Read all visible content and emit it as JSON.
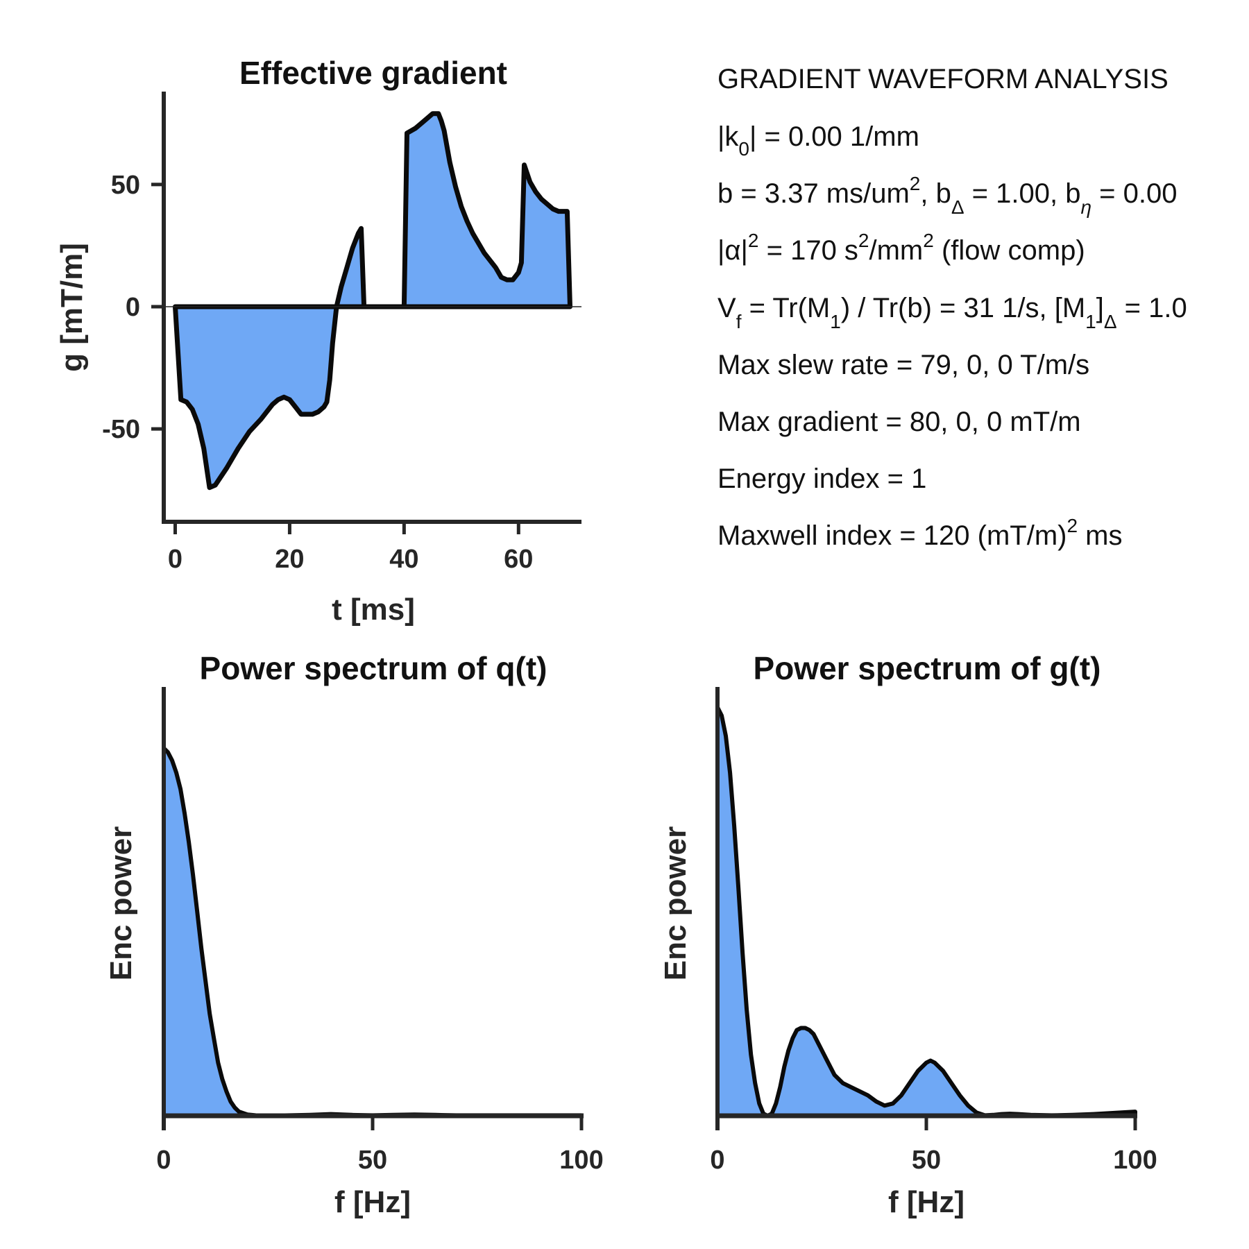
{
  "colors": {
    "fill": "#6fa8f5",
    "line": "#0a0a0a",
    "axis": "#262626"
  },
  "chart_data": [
    {
      "type": "area",
      "title": "Effective gradient",
      "xlabel": "t [ms]",
      "ylabel": "g [mT/m]",
      "xlim": [
        -2,
        71
      ],
      "ylim": [
        -88,
        88
      ],
      "xticks": [
        0,
        20,
        40,
        60
      ],
      "yticks": [
        -50,
        0,
        50
      ],
      "zero_line": true,
      "points": [
        [
          0,
          0
        ],
        [
          1,
          -38
        ],
        [
          2,
          -39
        ],
        [
          3,
          -42
        ],
        [
          4,
          -48
        ],
        [
          5,
          -58
        ],
        [
          6,
          -74
        ],
        [
          7,
          -73
        ],
        [
          9,
          -66
        ],
        [
          11,
          -58
        ],
        [
          13,
          -51
        ],
        [
          15,
          -46
        ],
        [
          17,
          -40
        ],
        [
          18,
          -38
        ],
        [
          19,
          -37
        ],
        [
          20,
          -38
        ],
        [
          21,
          -41
        ],
        [
          22,
          -44
        ],
        [
          24,
          -44
        ],
        [
          25,
          -43
        ],
        [
          26,
          -41
        ],
        [
          26.5,
          -39
        ],
        [
          27,
          -30
        ],
        [
          27.5,
          -15
        ],
        [
          28.2,
          0
        ],
        [
          29,
          8
        ],
        [
          30,
          16
        ],
        [
          31,
          24
        ],
        [
          32,
          30
        ],
        [
          32.5,
          32
        ],
        [
          33,
          0
        ],
        [
          33,
          0
        ],
        [
          39.5,
          0
        ],
        [
          40,
          0
        ],
        [
          40.5,
          71
        ],
        [
          42,
          73
        ],
        [
          43,
          75
        ],
        [
          44,
          77
        ],
        [
          45,
          79
        ],
        [
          46,
          79
        ],
        [
          46.5,
          76
        ],
        [
          47,
          72
        ],
        [
          48,
          59
        ],
        [
          49,
          49
        ],
        [
          50,
          41
        ],
        [
          51,
          35
        ],
        [
          52,
          30
        ],
        [
          54,
          22
        ],
        [
          56,
          16
        ],
        [
          57,
          12
        ],
        [
          58,
          11
        ],
        [
          59,
          11
        ],
        [
          60,
          14
        ],
        [
          60.5,
          18
        ],
        [
          61,
          58
        ],
        [
          62,
          51
        ],
        [
          63,
          47
        ],
        [
          64,
          44
        ],
        [
          65,
          42
        ],
        [
          66,
          40
        ],
        [
          67,
          39
        ],
        [
          68,
          39
        ],
        [
          68.5,
          39
        ],
        [
          69,
          0
        ]
      ]
    },
    {
      "type": "area",
      "title": "Power spectrum of q(t)",
      "xlabel": "f [Hz]",
      "ylabel": "Enc power",
      "xlim": [
        0,
        100
      ],
      "ylim": [
        0,
        1.05
      ],
      "xticks": [
        0,
        50,
        100
      ],
      "points": [
        [
          0,
          0.9
        ],
        [
          1,
          0.89
        ],
        [
          2,
          0.87
        ],
        [
          3,
          0.84
        ],
        [
          4,
          0.8
        ],
        [
          5,
          0.74
        ],
        [
          6,
          0.67
        ],
        [
          7,
          0.59
        ],
        [
          8,
          0.5
        ],
        [
          9,
          0.41
        ],
        [
          10,
          0.33
        ],
        [
          11,
          0.25
        ],
        [
          12,
          0.19
        ],
        [
          13,
          0.13
        ],
        [
          14,
          0.09
        ],
        [
          15,
          0.06
        ],
        [
          16,
          0.035
        ],
        [
          17,
          0.02
        ],
        [
          18,
          0.01
        ],
        [
          20,
          0.003
        ],
        [
          22,
          0.001
        ],
        [
          25,
          0.0
        ],
        [
          30,
          0.001
        ],
        [
          35,
          0.002
        ],
        [
          40,
          0.004
        ],
        [
          45,
          0.002
        ],
        [
          50,
          0.001
        ],
        [
          55,
          0.002
        ],
        [
          60,
          0.003
        ],
        [
          65,
          0.002
        ],
        [
          70,
          0.001
        ],
        [
          80,
          0.001
        ],
        [
          90,
          0.001
        ],
        [
          100,
          0.001
        ]
      ]
    },
    {
      "type": "area",
      "title": "Power spectrum of g(t)",
      "xlabel": "f [Hz]",
      "ylabel": "Enc power",
      "xlim": [
        0,
        100
      ],
      "ylim": [
        0,
        1.05
      ],
      "xticks": [
        0,
        50,
        100
      ],
      "points": [
        [
          0,
          1.0
        ],
        [
          1,
          0.98
        ],
        [
          2,
          0.93
        ],
        [
          3,
          0.84
        ],
        [
          4,
          0.71
        ],
        [
          5,
          0.56
        ],
        [
          6,
          0.4
        ],
        [
          7,
          0.26
        ],
        [
          8,
          0.15
        ],
        [
          9,
          0.08
        ],
        [
          10,
          0.03
        ],
        [
          11,
          0.005
        ],
        [
          12,
          0.0
        ],
        [
          13,
          0.005
        ],
        [
          14,
          0.03
        ],
        [
          15,
          0.07
        ],
        [
          16,
          0.12
        ],
        [
          17,
          0.16
        ],
        [
          18,
          0.19
        ],
        [
          19,
          0.21
        ],
        [
          20,
          0.215
        ],
        [
          21,
          0.215
        ],
        [
          22,
          0.21
        ],
        [
          23,
          0.2
        ],
        [
          24,
          0.18
        ],
        [
          26,
          0.14
        ],
        [
          28,
          0.1
        ],
        [
          30,
          0.08
        ],
        [
          32,
          0.07
        ],
        [
          34,
          0.06
        ],
        [
          36,
          0.05
        ],
        [
          38,
          0.035
        ],
        [
          40,
          0.025
        ],
        [
          42,
          0.03
        ],
        [
          44,
          0.05
        ],
        [
          46,
          0.08
        ],
        [
          48,
          0.11
        ],
        [
          50,
          0.13
        ],
        [
          51,
          0.135
        ],
        [
          52,
          0.13
        ],
        [
          54,
          0.11
        ],
        [
          56,
          0.08
        ],
        [
          58,
          0.05
        ],
        [
          60,
          0.025
        ],
        [
          62,
          0.008
        ],
        [
          64,
          0.001
        ],
        [
          66,
          0.002
        ],
        [
          68,
          0.004
        ],
        [
          70,
          0.005
        ],
        [
          72,
          0.004
        ],
        [
          75,
          0.002
        ],
        [
          80,
          0.001
        ],
        [
          85,
          0.002
        ],
        [
          90,
          0.004
        ],
        [
          95,
          0.007
        ],
        [
          100,
          0.01
        ]
      ]
    }
  ],
  "info": {
    "heading": "GRADIENT WAVEFORM ANALYSIS",
    "k0": {
      "a": "|k",
      "sub": "0",
      "b": "| = 0.00 1/mm"
    },
    "b_line": {
      "a": "b = 3.37 ms/um",
      "sup1": "2",
      "b": ", b",
      "sub1": "Δ",
      "c": " = 1.00, b",
      "sub2": "η",
      "d": " = 0.00"
    },
    "alpha": {
      "a": "|α|",
      "sup1": "2",
      "b": " = 170 s",
      "sup2": "2",
      "c": "/mm",
      "sup3": "2",
      "d": " (flow comp)"
    },
    "vf": {
      "a": "V",
      "sub1": "f",
      "b": " = Tr(M",
      "sub2": "1",
      "c": ") / Tr(b) =  31 1/s, [M",
      "sub3": "1",
      "d": "]",
      "sub4": "Δ",
      "e": " = 1.0"
    },
    "slew": "Max slew rate = 79,  0,  0 T/m/s",
    "gmax": "Max gradient = 80,  0,  0 mT/m",
    "energy": "Energy index =  1",
    "maxwell": {
      "a": "Maxwell index = 120 (mT/m)",
      "sup1": "2",
      "b": " ms"
    }
  }
}
